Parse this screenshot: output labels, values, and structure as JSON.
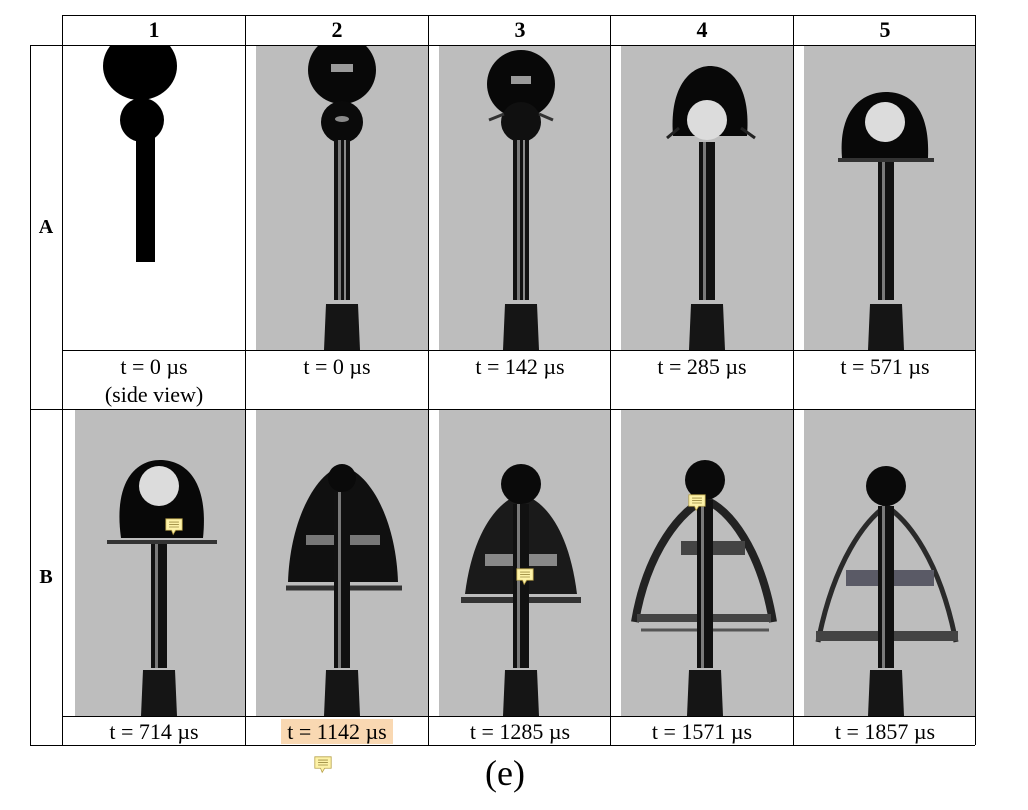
{
  "columns": [
    "1",
    "2",
    "3",
    "4",
    "5"
  ],
  "rows": [
    "A",
    "B"
  ],
  "captions": {
    "A": [
      "t = 0 µs",
      "t = 0 µs",
      "t = 142 µs",
      "t = 285 µs",
      "t = 571 µs"
    ],
    "A1_sub": "(side view)",
    "B": [
      "t = 714 µs",
      "t = 1142 µs",
      "t = 1285 µs",
      "t = 1571 µs",
      "t = 1857 µs"
    ]
  },
  "figure_label": "(e)",
  "icons": [
    "comment-note-icon",
    "comment-note-icon",
    "comment-note-icon",
    "comment-note-icon"
  ],
  "colors": {
    "photo_background": "#bdbdbd",
    "droplet": "#0a0a0a",
    "highlight": "#f9d8b2",
    "note": "#fdf2a8"
  }
}
